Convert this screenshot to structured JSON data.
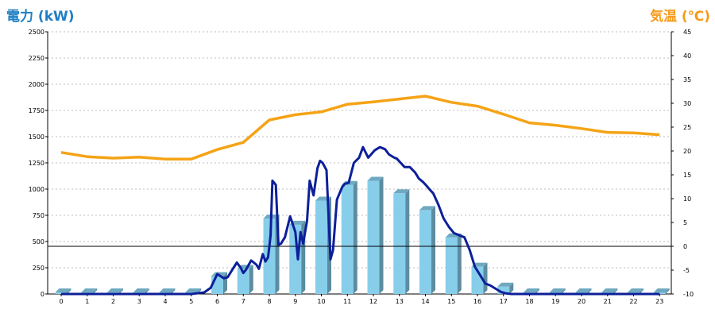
{
  "chart_data": {
    "type": "bar+line",
    "left_axis_label": "電力 (kW)",
    "right_axis_label": "気温 (℃)",
    "y_left_ticks": [
      "0",
      "250",
      "500",
      "750",
      "1000",
      "1250",
      "1500",
      "1750",
      "2000",
      "2250",
      "2500"
    ],
    "y_right_ticks": [
      "-10",
      "-5",
      "0",
      "5",
      "10",
      "15",
      "20",
      "25",
      "30",
      "35",
      "40",
      "45"
    ],
    "x_ticks": [
      "0",
      "1",
      "2",
      "3",
      "4",
      "5",
      "6",
      "7",
      "8",
      "9",
      "10",
      "11",
      "12",
      "13",
      "14",
      "15",
      "16",
      "17",
      "18",
      "19",
      "20",
      "21",
      "22",
      "23"
    ],
    "ylim_left": [
      0,
      2500
    ],
    "ylim_right": [
      -10,
      45
    ],
    "bars": {
      "x": [
        0,
        1,
        2,
        3,
        4,
        5,
        6,
        7,
        8,
        9,
        10,
        11,
        12,
        13,
        14,
        15,
        16,
        17,
        18,
        19,
        20,
        21,
        22,
        23
      ],
      "values": [
        15,
        15,
        15,
        15,
        15,
        15,
        170,
        240,
        720,
        660,
        890,
        1040,
        1080,
        960,
        800,
        540,
        260,
        70,
        15,
        15,
        15,
        15,
        15,
        15
      ],
      "color": "#87ceeb"
    },
    "power_line": {
      "color": "#0d1f99",
      "x": [
        0,
        1,
        2,
        3,
        4,
        5,
        5.5,
        5.75,
        6.0,
        6.25,
        6.4,
        6.6,
        6.75,
        6.9,
        7.0,
        7.1,
        7.3,
        7.5,
        7.6,
        7.75,
        7.85,
        7.95,
        8.0,
        8.05,
        8.12,
        8.25,
        8.35,
        8.45,
        8.6,
        8.8,
        9.0,
        9.1,
        9.2,
        9.3,
        9.45,
        9.55,
        9.7,
        9.85,
        9.95,
        10.05,
        10.2,
        10.35,
        10.45,
        10.6,
        10.8,
        10.9,
        11.05,
        11.25,
        11.45,
        11.6,
        11.8,
        12.05,
        12.25,
        12.45,
        12.6,
        12.8,
        12.9,
        13.05,
        13.2,
        13.4,
        13.6,
        13.75,
        13.9,
        14.05,
        14.15,
        14.3,
        14.5,
        14.7,
        14.9,
        15.1,
        15.3,
        15.5,
        15.7,
        15.9,
        16.1,
        16.3,
        16.5,
        16.7,
        16.9,
        17.1,
        17.3,
        17.5,
        18,
        19,
        20,
        21,
        22,
        23
      ],
      "values": [
        0,
        0,
        0,
        0,
        0,
        0,
        15,
        60,
        190,
        150,
        160,
        240,
        300,
        250,
        200,
        230,
        320,
        280,
        240,
        380,
        310,
        350,
        450,
        560,
        1080,
        1040,
        470,
        480,
        540,
        740,
        590,
        330,
        590,
        480,
        700,
        1080,
        940,
        1200,
        1270,
        1250,
        1180,
        330,
        420,
        900,
        1020,
        1050,
        1060,
        1250,
        1300,
        1400,
        1300,
        1370,
        1400,
        1380,
        1330,
        1300,
        1290,
        1250,
        1210,
        1210,
        1160,
        1100,
        1070,
        1030,
        1000,
        960,
        850,
        720,
        640,
        580,
        560,
        540,
        420,
        260,
        180,
        100,
        80,
        50,
        20,
        5,
        0,
        0,
        0,
        0,
        0,
        0,
        0,
        0
      ]
    },
    "temperature_line": {
      "color": "#f5a316",
      "x": [
        0,
        1,
        2,
        3,
        4,
        5,
        6,
        7,
        8,
        9,
        10,
        11,
        12,
        13,
        14,
        15,
        16,
        17,
        18,
        19,
        20,
        21,
        22,
        23
      ],
      "values": [
        19.7,
        18.8,
        18.5,
        18.7,
        18.3,
        18.3,
        20.3,
        21.8,
        26.5,
        27.6,
        28.2,
        29.8,
        30.3,
        30.9,
        31.5,
        30.2,
        29.4,
        27.7,
        25.9,
        25.4,
        24.7,
        23.9,
        23.8,
        23.4
      ]
    },
    "grid": true
  }
}
